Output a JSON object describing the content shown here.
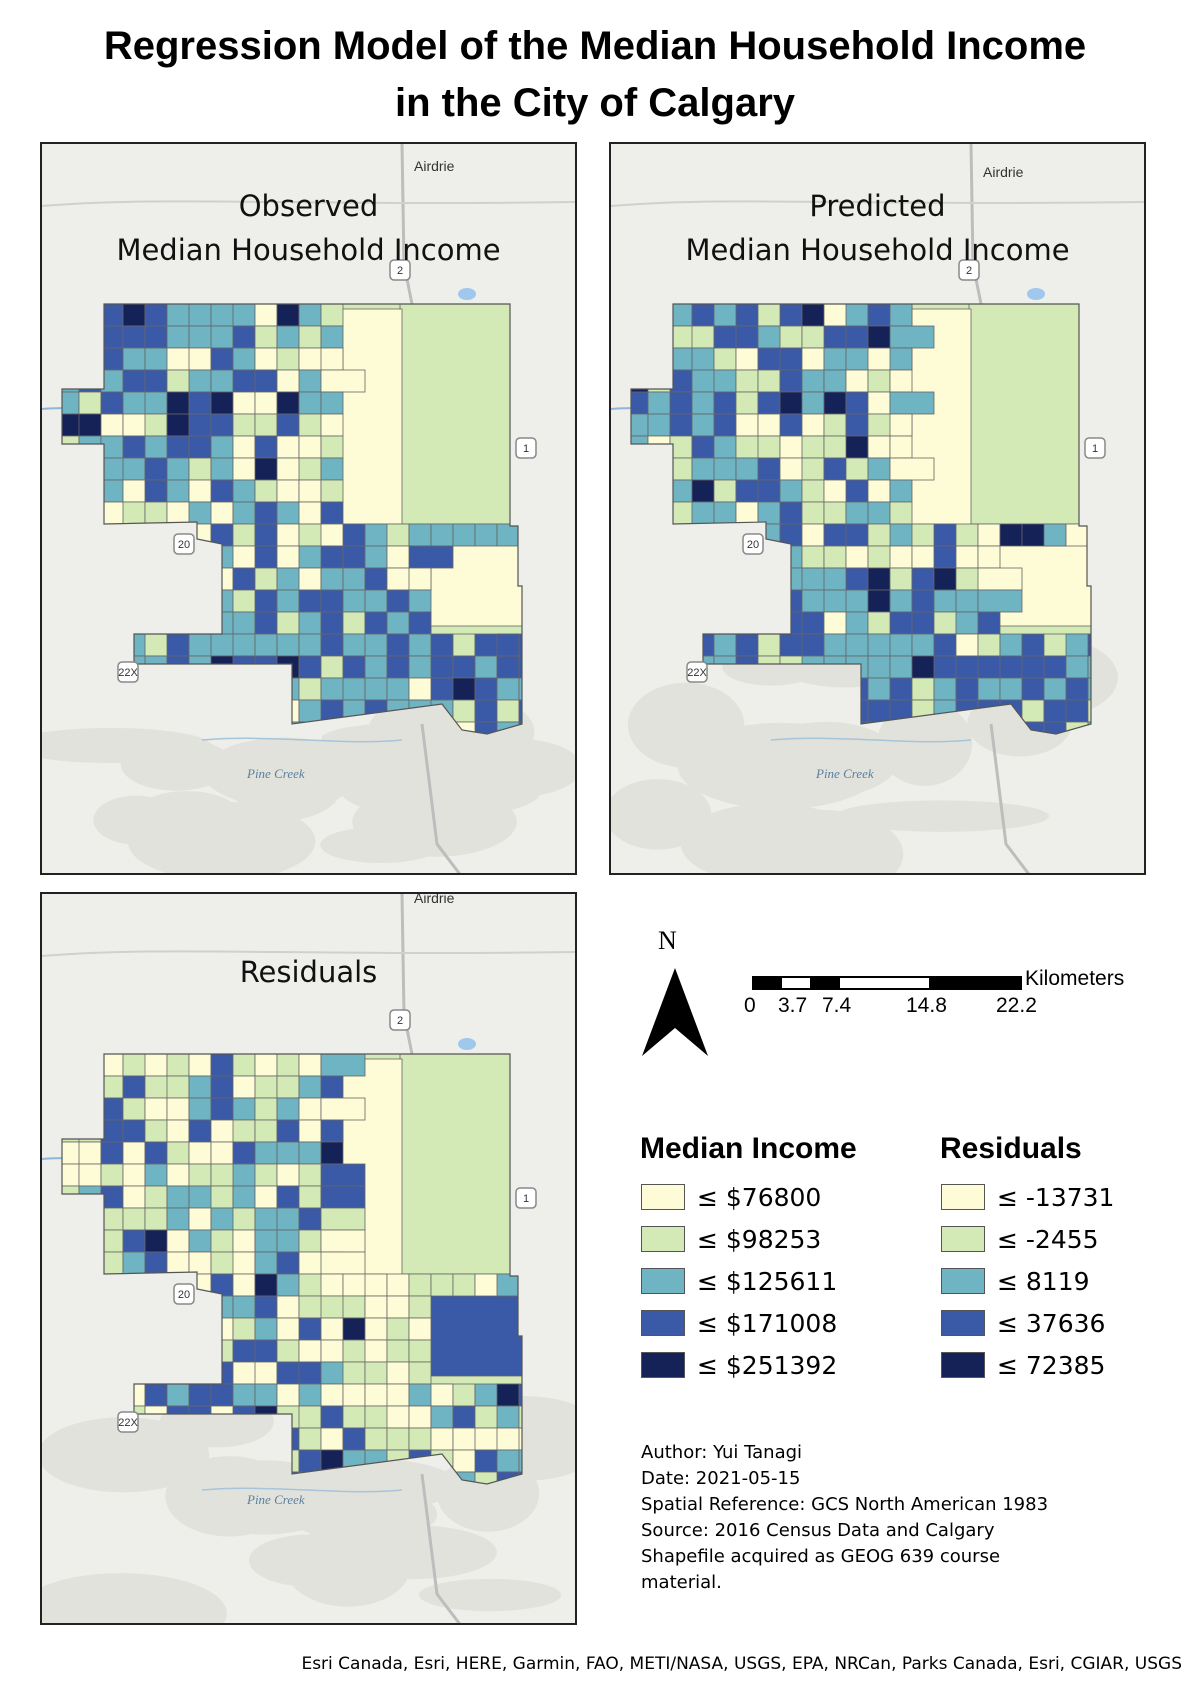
{
  "title_line1": "Regression Model of the Median Household Income",
  "title_line2": "in the City of Calgary",
  "panels": {
    "observed": {
      "title_line1": "Observed",
      "title_line2": "Median Household Income"
    },
    "predicted": {
      "title_line1": "Predicted",
      "title_line2": "Median Household Income"
    },
    "residuals": {
      "title_line1": "Residuals"
    }
  },
  "basemap_labels": {
    "airdrie": "Airdrie",
    "hwy2": "2",
    "hwy1": "1",
    "hwy20": "20",
    "hwy22x": "22X",
    "pine_creek": "Pine Creek"
  },
  "north_arrow": {
    "letter": "N"
  },
  "scale_bar": {
    "unit": "Kilometers",
    "ticks": [
      "0",
      "3.7",
      "7.4",
      "14.8",
      "22.2"
    ]
  },
  "legend_income": {
    "title": "Median Income",
    "items": [
      {
        "label": "≤ $76800",
        "color": "#fdfcd6"
      },
      {
        "label": "≤ $98253",
        "color": "#d3eab6"
      },
      {
        "label": "≤ $125611",
        "color": "#6eb4c2"
      },
      {
        "label": "≤ $171008",
        "color": "#3a5aa8"
      },
      {
        "label": "≤ $251392",
        "color": "#152258"
      }
    ]
  },
  "legend_residuals": {
    "title": "Residuals",
    "items": [
      {
        "label": "≤ -13731",
        "color": "#fdfcd6"
      },
      {
        "label": "≤ -2455",
        "color": "#d3eab6"
      },
      {
        "label": "≤ 8119",
        "color": "#6eb4c2"
      },
      {
        "label": "≤ 37636",
        "color": "#3a5aa8"
      },
      {
        "label": "≤ 72385",
        "color": "#152258"
      }
    ]
  },
  "metadata": {
    "author": "Author: Yui Tanagi",
    "date": "Date: 2021-05-15",
    "spatial_reference": "Spatial Reference: GCS North American 1983",
    "source_line1": "Source: 2016 Census Data and Calgary",
    "source_line2": "Shapefile acquired as GEOG 639 course",
    "source_line3": "material."
  },
  "credits": "Esri Canada, Esri, HERE, Garmin, FAO, METI/NASA, USGS, EPA, NRCan, Parks Canada, Esri, CGIAR, USGS"
}
